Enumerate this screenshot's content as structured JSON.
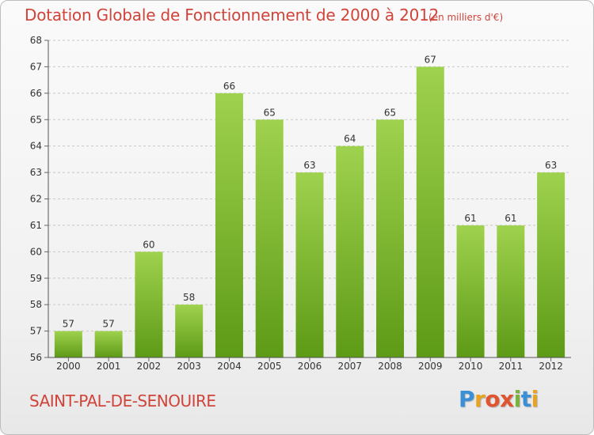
{
  "header": {
    "title": "Dotation Globale de Fonctionnement de 2000 à 2012",
    "unit": "(en milliers d'€)"
  },
  "footer": {
    "commune": "SAINT-PAL-DE-SENOUIRE",
    "brand_letters": [
      "P",
      "r",
      "o",
      "x",
      "i",
      "t",
      "i"
    ],
    "brand_colors": [
      "#3a8fd6",
      "#e8a323",
      "#e0542f",
      "#e0542f",
      "#7ab33b",
      "#3a8fd6",
      "#e8a323"
    ]
  },
  "chart_data": {
    "type": "bar",
    "title": "Dotation Globale de Fonctionnement de 2000 à 2012",
    "subtitle": "(en milliers d'€)",
    "categories": [
      "2000",
      "2001",
      "2002",
      "2003",
      "2004",
      "2005",
      "2006",
      "2007",
      "2008",
      "2009",
      "2010",
      "2011",
      "2012"
    ],
    "values": [
      57,
      57,
      60,
      58,
      66,
      65,
      63,
      64,
      65,
      67,
      61,
      61,
      63
    ],
    "ylim": [
      56,
      68
    ],
    "yticks": [
      56,
      57,
      58,
      59,
      60,
      61,
      62,
      63,
      64,
      65,
      66,
      67,
      68
    ],
    "grid": true,
    "bar_color_top": "#9fd24e",
    "bar_color_bottom": "#5d9a16",
    "data_labels": true
  }
}
